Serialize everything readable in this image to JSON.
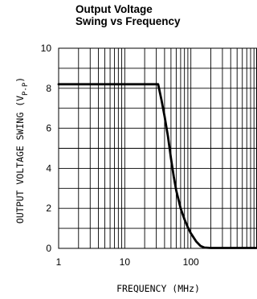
{
  "chart_data": {
    "type": "line",
    "title_line1": "Output Voltage",
    "title_line2": "Swing vs Frequency",
    "xlabel": "FREQUENCY (MHz)",
    "ylabel_main": "OUTPUT VOLTAGE SWING (V",
    "ylabel_sub": "P-P",
    "ylabel_close": ")",
    "xscale": "log",
    "xlim": [
      1,
      1000
    ],
    "ylim": [
      0,
      10
    ],
    "grid": true,
    "x_ticks": [
      {
        "v": 1,
        "label": "1"
      },
      {
        "v": 10,
        "label": "10"
      },
      {
        "v": 100,
        "label": "100"
      }
    ],
    "y_ticks": [
      {
        "v": 0,
        "label": "0"
      },
      {
        "v": 2,
        "label": "2"
      },
      {
        "v": 4,
        "label": "4"
      },
      {
        "v": 6,
        "label": "6"
      },
      {
        "v": 8,
        "label": "8"
      },
      {
        "v": 10,
        "label": "10"
      }
    ],
    "series": [
      {
        "x": [
          1,
          10,
          30,
          32,
          36,
          40,
          45,
          50,
          55,
          60,
          70,
          80,
          90,
          100,
          120,
          140,
          160,
          200,
          300,
          500,
          1000
        ],
        "y": [
          8.2,
          8.2,
          8.2,
          8.2,
          7.4,
          6.6,
          5.6,
          4.5,
          3.6,
          2.9,
          2.0,
          1.45,
          1.05,
          0.75,
          0.35,
          0.12,
          0.04,
          0.02,
          0.02,
          0.02,
          0.02
        ]
      }
    ]
  }
}
